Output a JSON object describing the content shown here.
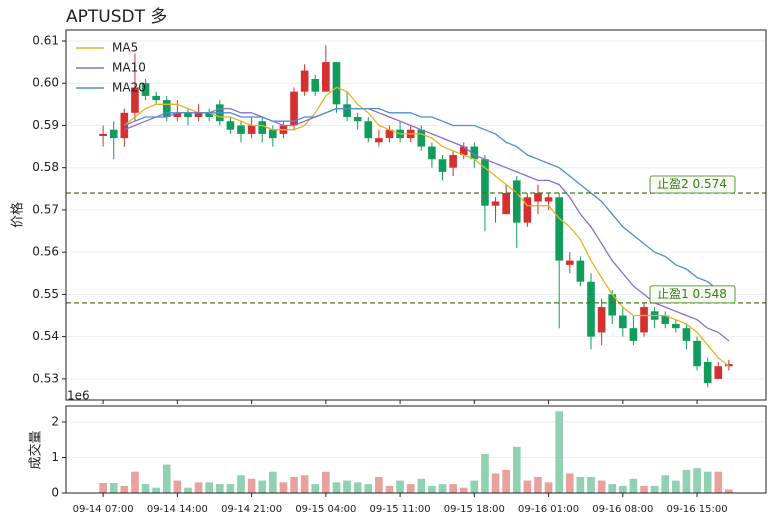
{
  "chart_data": {
    "type": "candlestick",
    "title": "APTUSDT  多",
    "y_label": "价格",
    "volume_label": "成交量",
    "volume_offset": "1e6",
    "categories": [
      "09-14 07:00",
      null,
      null,
      null,
      null,
      null,
      null,
      "09-14 14:00",
      null,
      null,
      null,
      null,
      null,
      null,
      "09-14 21:00",
      null,
      null,
      null,
      null,
      null,
      null,
      "09-15 04:00",
      null,
      null,
      null,
      null,
      null,
      null,
      "09-15 11:00",
      null,
      null,
      null,
      null,
      null,
      null,
      "09-15 18:00",
      null,
      null,
      null,
      null,
      null,
      null,
      "09-16 01:00",
      null,
      null,
      null,
      null,
      null,
      null,
      "09-16 08:00",
      null,
      null,
      null,
      null,
      null,
      null,
      "09-16 15:00",
      null,
      null,
      null
    ],
    "open": [
      0.5875,
      0.589,
      0.587,
      0.593,
      0.6,
      0.597,
      0.596,
      0.592,
      0.593,
      0.592,
      0.593,
      0.595,
      0.591,
      0.59,
      0.588,
      0.591,
      0.589,
      0.588,
      0.59,
      0.598,
      0.601,
      0.598,
      0.605,
      0.595,
      0.592,
      0.591,
      0.586,
      0.587,
      0.589,
      0.587,
      0.589,
      0.585,
      0.582,
      0.58,
      0.583,
      0.585,
      0.582,
      0.571,
      0.569,
      0.577,
      0.567,
      0.572,
      0.572,
      0.573,
      0.557,
      0.558,
      0.553,
      0.541,
      0.55,
      0.545,
      0.542,
      0.541,
      0.546,
      0.545,
      0.543,
      0.542,
      0.539,
      0.534,
      0.53,
      0.533
    ],
    "high": [
      0.59,
      0.591,
      0.594,
      0.607,
      0.601,
      0.598,
      0.597,
      0.596,
      0.594,
      0.595,
      0.594,
      0.596,
      0.592,
      0.591,
      0.592,
      0.592,
      0.59,
      0.591,
      0.599,
      0.6045,
      0.602,
      0.609,
      0.605,
      0.598,
      0.593,
      0.592,
      0.589,
      0.59,
      0.591,
      0.59,
      0.59,
      0.586,
      0.583,
      0.584,
      0.586,
      0.586,
      0.583,
      0.573,
      0.576,
      0.578,
      0.574,
      0.576,
      0.574,
      0.574,
      0.56,
      0.559,
      0.555,
      0.549,
      0.551,
      0.547,
      0.545,
      0.548,
      0.547,
      0.546,
      0.544,
      0.543,
      0.54,
      0.535,
      0.534,
      0.5345
    ],
    "low": [
      0.585,
      0.582,
      0.585,
      0.591,
      0.596,
      0.595,
      0.591,
      0.591,
      0.59,
      0.591,
      0.591,
      0.59,
      0.588,
      0.586,
      0.587,
      0.586,
      0.585,
      0.587,
      0.589,
      0.597,
      0.597,
      0.598,
      0.593,
      0.591,
      0.589,
      0.586,
      0.585,
      0.586,
      0.586,
      0.586,
      0.584,
      0.58,
      0.577,
      0.578,
      0.582,
      0.58,
      0.565,
      0.567,
      0.569,
      0.561,
      0.566,
      0.569,
      0.57,
      0.542,
      0.555,
      0.552,
      0.537,
      0.538,
      0.543,
      0.54,
      0.538,
      0.54,
      0.542,
      0.542,
      0.541,
      0.537,
      0.532,
      0.528,
      0.53,
      0.532
    ],
    "close": [
      0.588,
      0.587,
      0.593,
      0.599,
      0.597,
      0.596,
      0.592,
      0.593,
      0.592,
      0.593,
      0.592,
      0.591,
      0.589,
      0.588,
      0.59,
      0.588,
      0.587,
      0.59,
      0.598,
      0.603,
      0.598,
      0.605,
      0.595,
      0.592,
      0.591,
      0.587,
      0.587,
      0.589,
      0.587,
      0.589,
      0.585,
      0.582,
      0.579,
      0.583,
      0.585,
      0.582,
      0.571,
      0.572,
      0.574,
      0.567,
      0.573,
      0.574,
      0.573,
      0.558,
      0.558,
      0.553,
      0.54,
      0.547,
      0.545,
      0.542,
      0.539,
      0.547,
      0.544,
      0.543,
      0.542,
      0.539,
      0.533,
      0.529,
      0.533,
      0.5335
    ],
    "up_color": "#d3302f",
    "down_color": "#119c5c",
    "volume_up_color": "#e8a19f",
    "volume_down_color": "#8fd1b0",
    "volume": [
      0.28,
      0.28,
      0.2,
      0.6,
      0.25,
      0.15,
      0.8,
      0.35,
      0.15,
      0.3,
      0.3,
      0.25,
      0.25,
      0.5,
      0.4,
      0.35,
      0.6,
      0.3,
      0.45,
      0.5,
      0.25,
      0.6,
      0.3,
      0.35,
      0.3,
      0.25,
      0.45,
      0.2,
      0.35,
      0.25,
      0.4,
      0.2,
      0.25,
      0.25,
      0.15,
      0.35,
      1.1,
      0.55,
      0.65,
      1.3,
      0.35,
      0.45,
      0.3,
      2.3,
      0.55,
      0.45,
      0.45,
      0.35,
      0.25,
      0.2,
      0.4,
      0.2,
      0.2,
      0.5,
      0.35,
      0.65,
      0.7,
      0.6,
      0.6,
      0.1
    ],
    "series": [
      {
        "name": "MA5",
        "color": "#e6b422",
        "values": [
          null,
          null,
          0.59,
          0.592,
          0.594,
          0.595,
          0.595,
          0.595,
          0.594,
          0.593,
          0.593,
          0.592,
          0.592,
          0.591,
          0.59,
          0.59,
          0.589,
          0.589,
          0.589,
          0.59,
          0.593,
          0.597,
          0.599,
          0.598,
          0.595,
          0.593,
          0.59,
          0.589,
          0.588,
          0.588,
          0.588,
          0.587,
          0.585,
          0.584,
          0.583,
          0.582,
          0.58,
          0.578,
          0.576,
          0.574,
          0.571,
          0.571,
          0.571,
          0.568,
          0.566,
          0.563,
          0.558,
          0.554,
          0.55,
          0.547,
          0.545,
          0.545,
          0.545,
          0.545,
          0.544,
          0.543,
          0.541,
          0.538,
          0.535,
          0.533
        ]
      },
      {
        "name": "MA10",
        "color": "#8a6fd1",
        "values": [
          null,
          null,
          0.589,
          0.59,
          0.591,
          0.592,
          0.592,
          0.593,
          0.593,
          0.593,
          0.593,
          0.594,
          0.594,
          0.593,
          0.593,
          0.592,
          0.591,
          0.59,
          0.59,
          0.591,
          0.592,
          0.593,
          0.594,
          0.594,
          0.594,
          0.594,
          0.593,
          0.592,
          0.591,
          0.59,
          0.589,
          0.588,
          0.587,
          0.586,
          0.585,
          0.583,
          0.582,
          0.581,
          0.58,
          0.579,
          0.578,
          0.577,
          0.577,
          0.576,
          0.573,
          0.569,
          0.566,
          0.562,
          0.558,
          0.555,
          0.552,
          0.55,
          0.548,
          0.547,
          0.546,
          0.545,
          0.544,
          0.542,
          0.541,
          0.539
        ]
      },
      {
        "name": "MA20",
        "color": "#4a90cf",
        "values": [
          null,
          null,
          0.59,
          0.591,
          0.592,
          0.592,
          0.593,
          0.593,
          0.593,
          0.593,
          0.593,
          0.593,
          0.593,
          0.592,
          0.592,
          0.592,
          0.591,
          0.591,
          0.591,
          0.592,
          0.592,
          0.593,
          0.594,
          0.594,
          0.594,
          0.594,
          0.594,
          0.593,
          0.593,
          0.593,
          0.592,
          0.592,
          0.591,
          0.59,
          0.59,
          0.59,
          0.589,
          0.588,
          0.586,
          0.585,
          0.583,
          0.582,
          0.581,
          0.58,
          0.578,
          0.576,
          0.574,
          0.572,
          0.569,
          0.566,
          0.564,
          0.562,
          0.56,
          0.559,
          0.557,
          0.556,
          0.554,
          0.553,
          0.551,
          0.549
        ]
      }
    ],
    "annotations": [
      {
        "label": "止盈2 0.574",
        "value": 0.574
      },
      {
        "label": "止盈1 0.548",
        "value": 0.548
      }
    ],
    "annotation_color": "#3d7a1a",
    "ylim": [
      0.525,
      0.6126
    ],
    "yticks": [
      0.53,
      0.54,
      0.55,
      0.56,
      0.57,
      0.58,
      0.59,
      {
        "value": 0.6,
        "label": "0.60"
      },
      0.61
    ],
    "volume_ylim": [
      0,
      2.45
    ],
    "volume_yticks": [
      0,
      1,
      2
    ],
    "grid": true
  }
}
